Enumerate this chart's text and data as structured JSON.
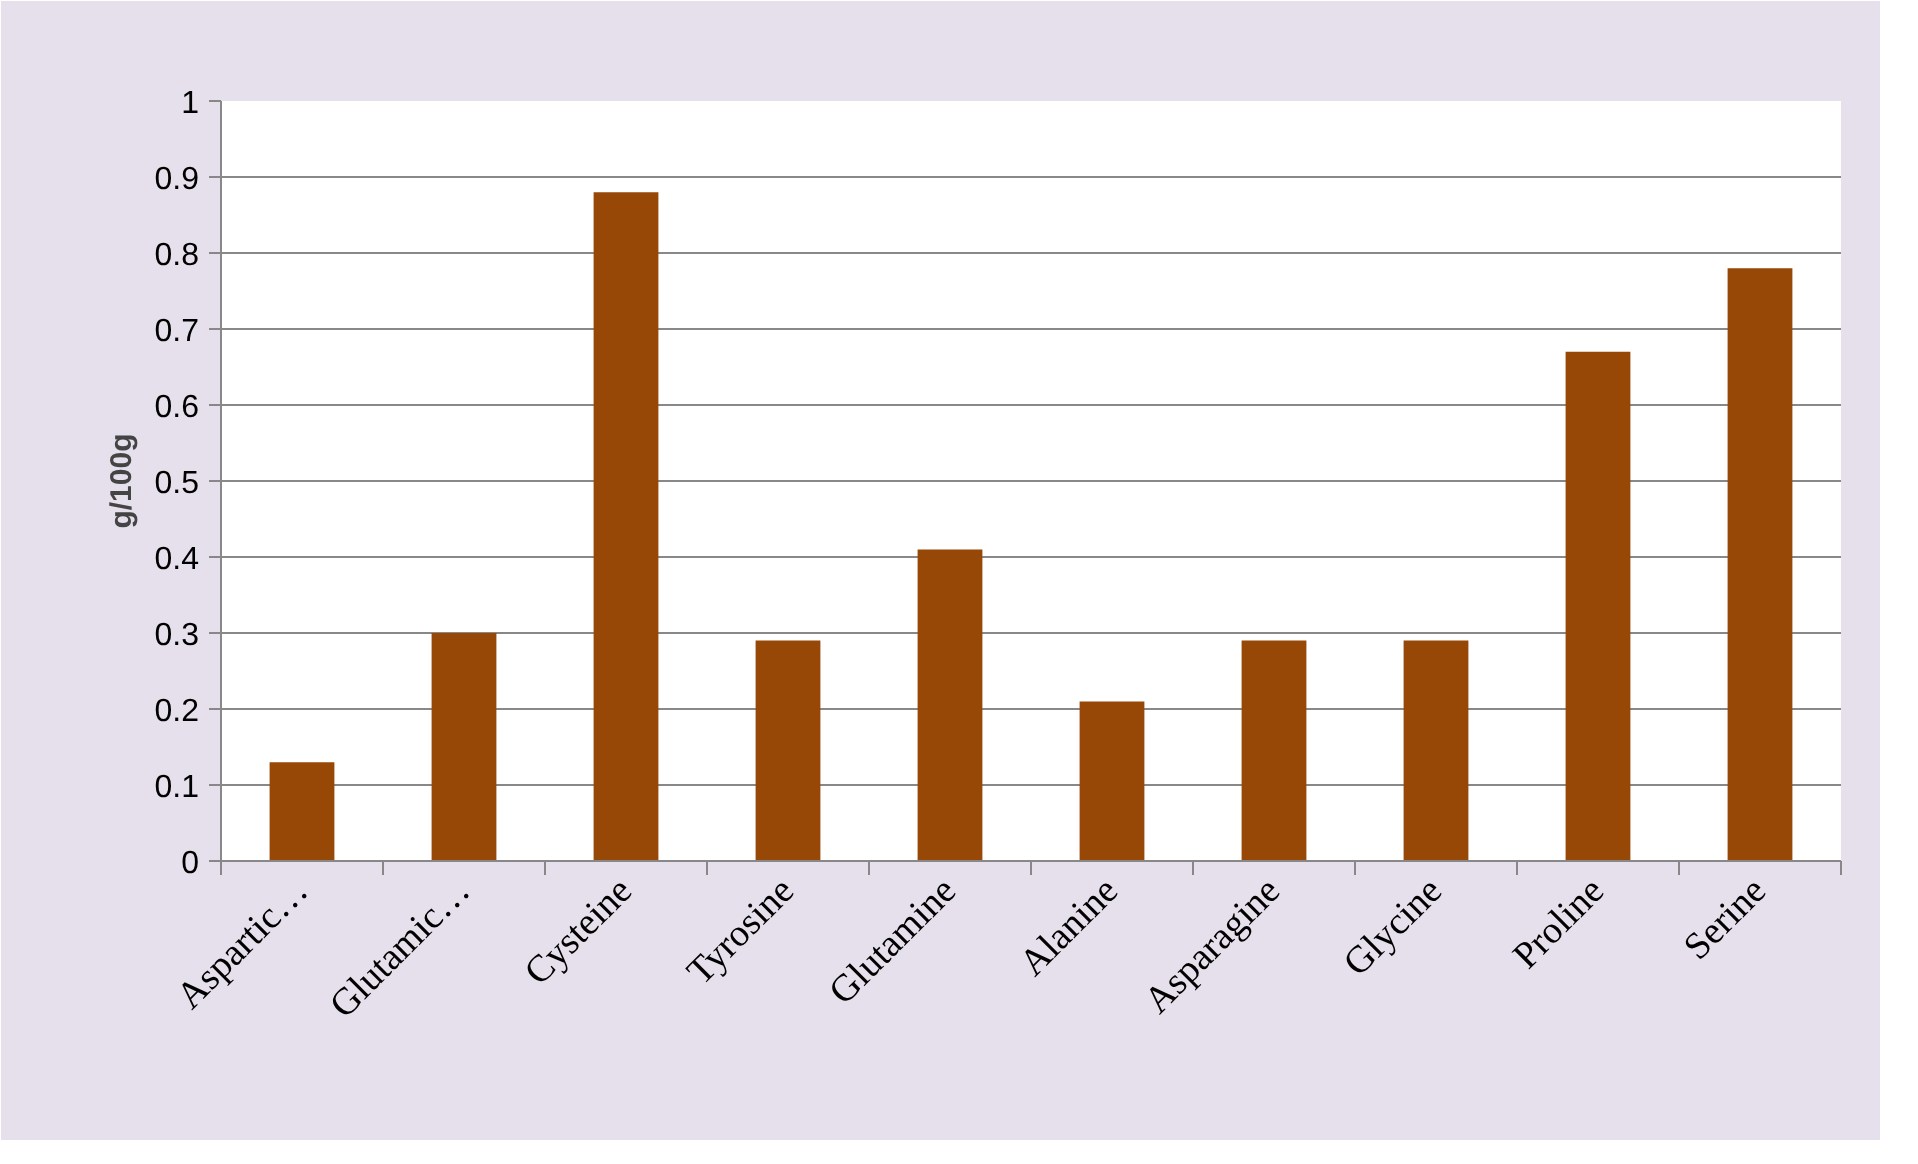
{
  "chart_data": {
    "type": "bar",
    "ylabel": "g/100g",
    "categories": [
      "Aspartic…",
      "Glutamic…",
      "Cysteine",
      "Tyrosine",
      "Glutamine",
      "Alanine",
      "Asparagine",
      "Glycine",
      "Proline",
      "Serine"
    ],
    "values": [
      0.13,
      0.3,
      0.88,
      0.29,
      0.41,
      0.21,
      0.29,
      0.29,
      0.67,
      0.78
    ],
    "color": "#974706",
    "ylim": [
      0,
      1
    ],
    "yticks": [
      0,
      0.1,
      0.2,
      0.3,
      0.4,
      0.5,
      0.6,
      0.7,
      0.8,
      0.9,
      1
    ],
    "grid": "y"
  }
}
